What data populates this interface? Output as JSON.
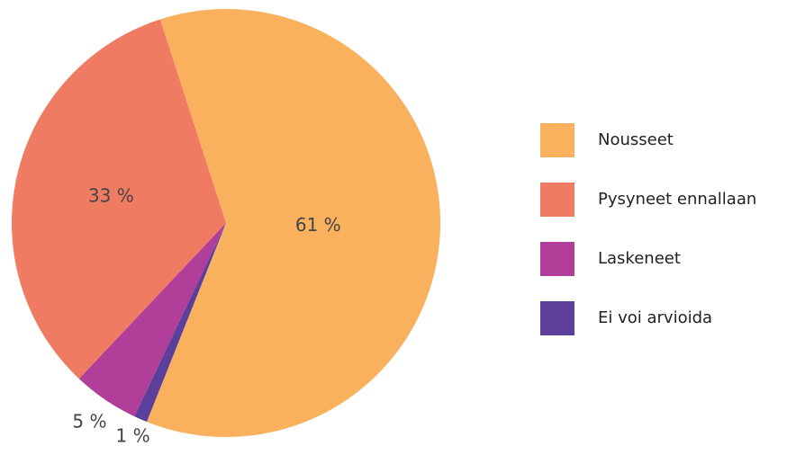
{
  "chart_data": {
    "type": "pie",
    "categories": [
      "Nousseet",
      "Pysyneet ennallaan",
      "Laskeneet",
      "Ei voi arvioida"
    ],
    "values": [
      61,
      33,
      5,
      1
    ],
    "value_labels": [
      "61 %",
      "33 %",
      "5 %",
      "1 %"
    ],
    "colors": [
      "#f9b15e",
      "#f07b63",
      "#b13f9a",
      "#5b3f9a"
    ],
    "legend": "right"
  }
}
